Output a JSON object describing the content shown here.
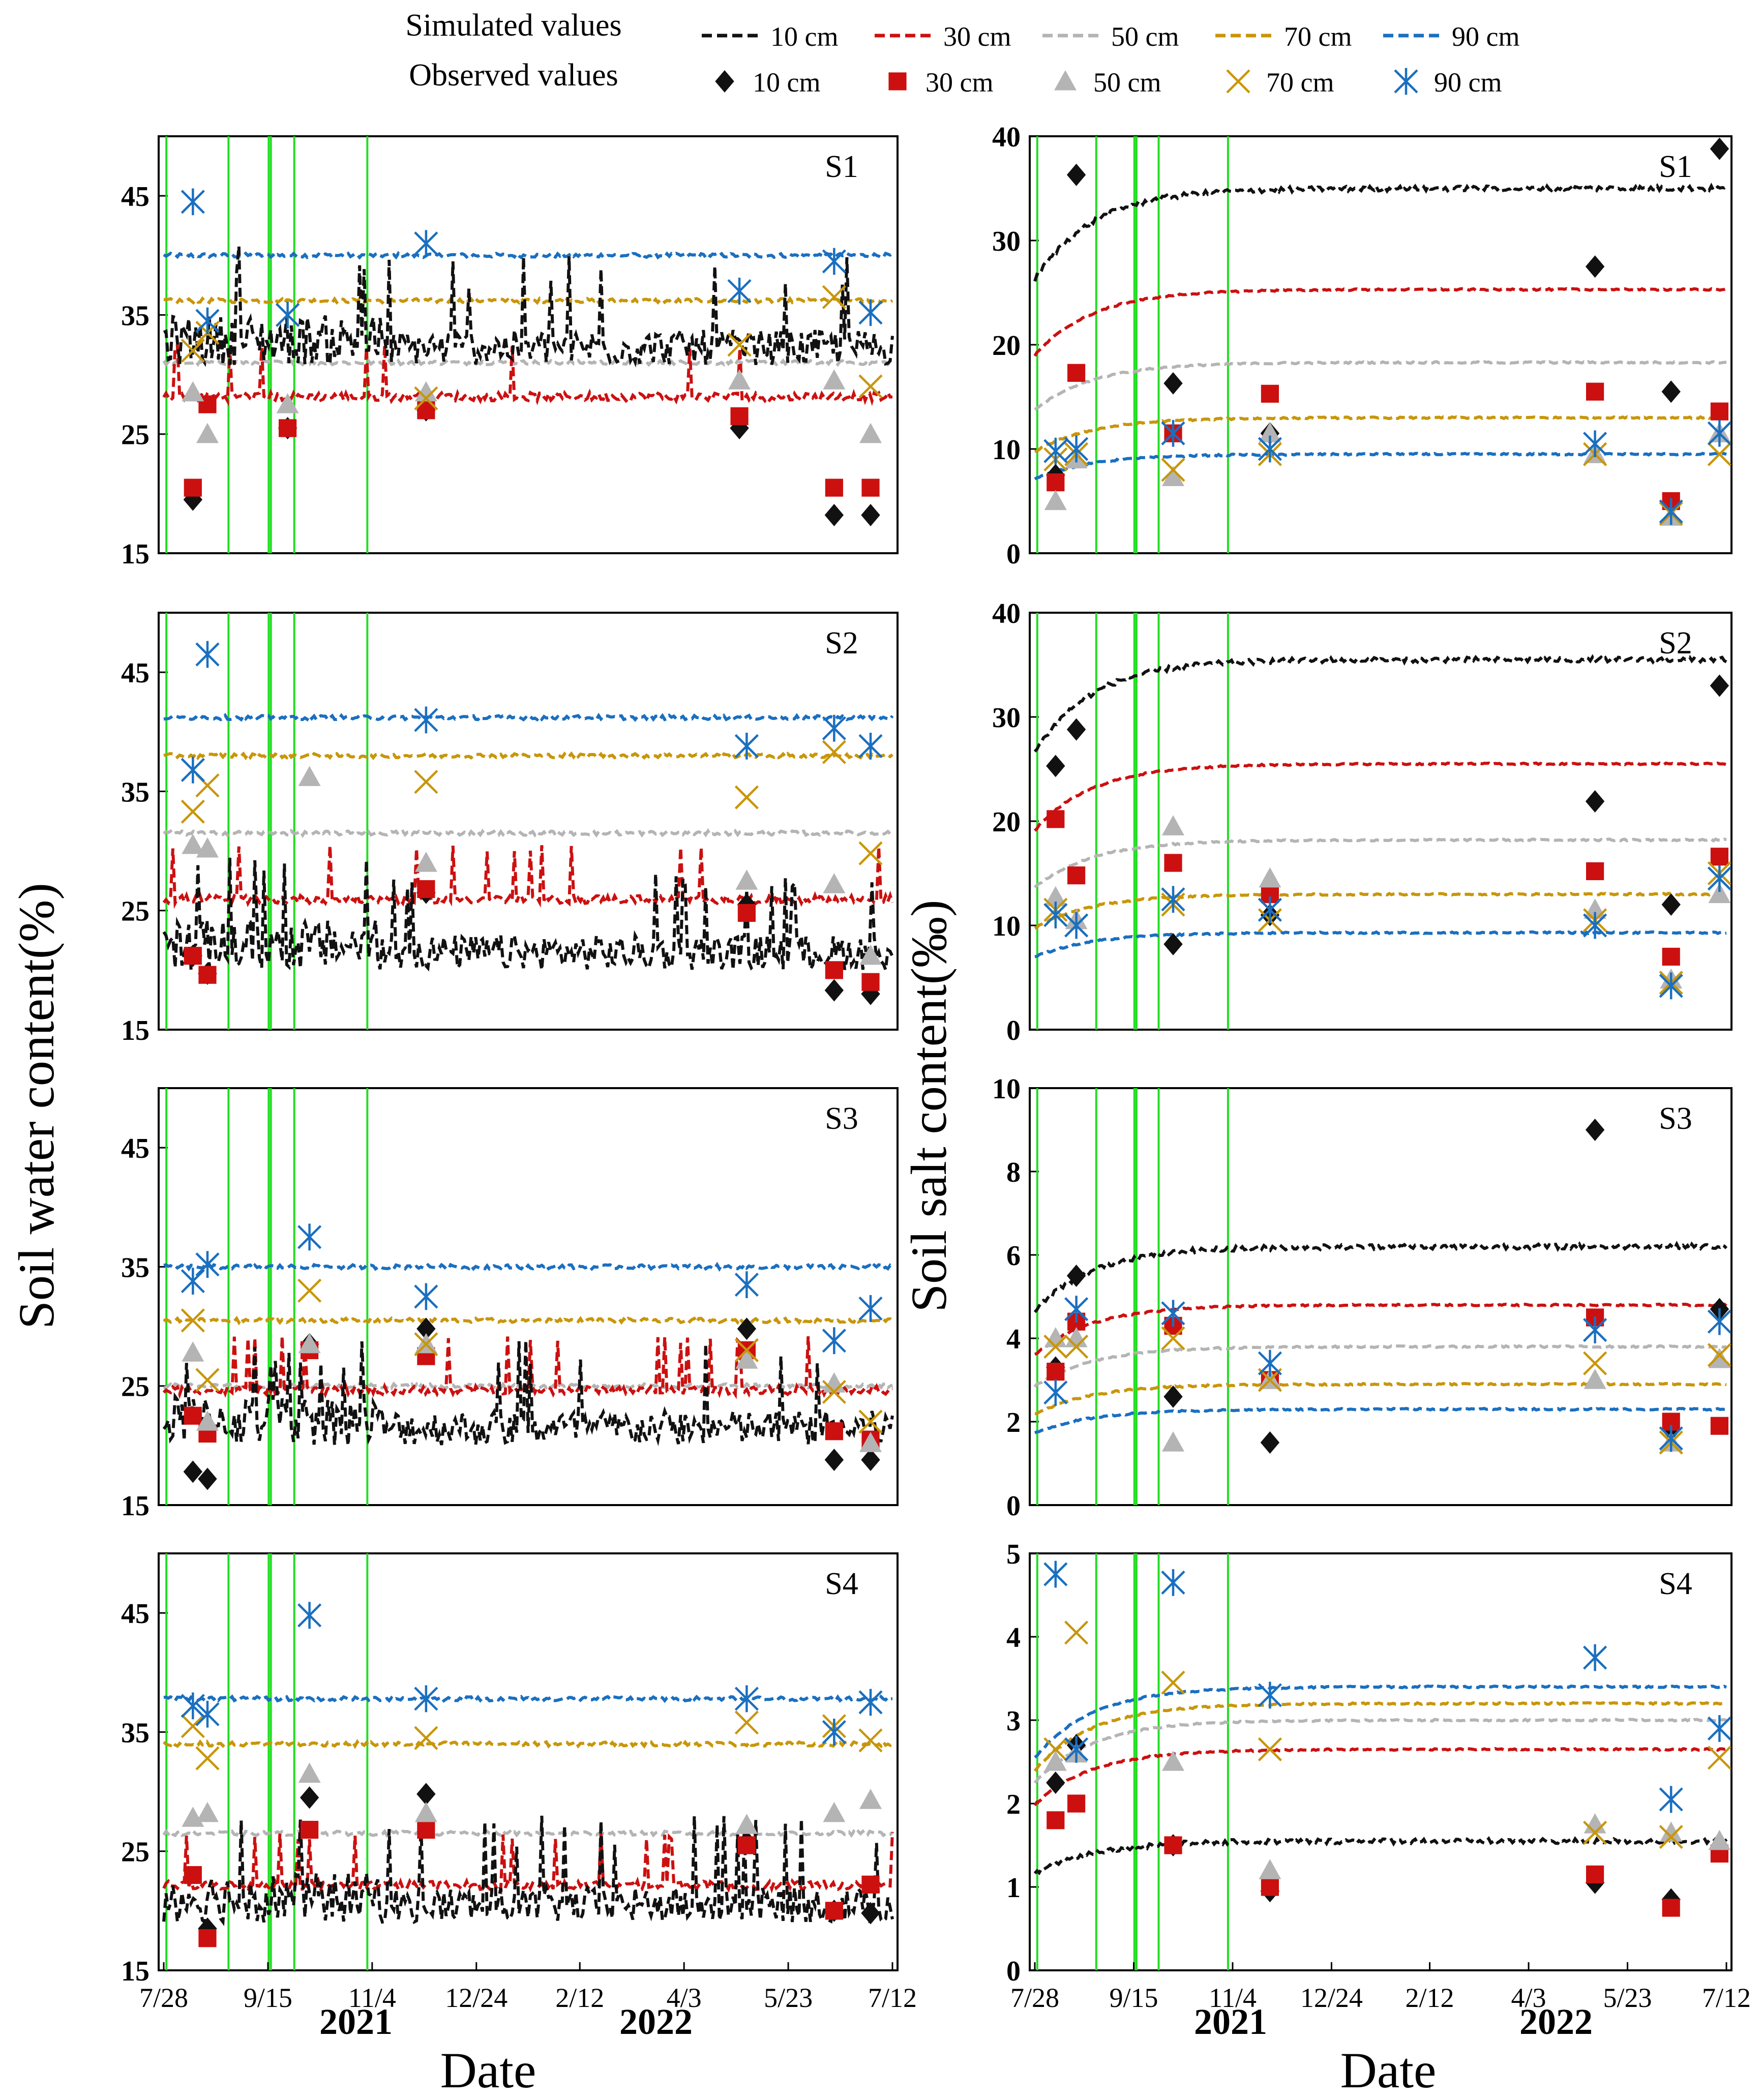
{
  "legend": {
    "simulated_label": "Simulated values",
    "observed_label": "Observed values",
    "depths": [
      "10 cm",
      "30 cm",
      "50 cm",
      "70 cm",
      "90 cm"
    ],
    "colors": [
      "#111111",
      "#cc1010",
      "#b4b4b4",
      "#c8960a",
      "#1a6fc0"
    ]
  },
  "labels": {
    "water_ylabel": "Soil water content(%)",
    "salt_ylabel": "Soil salt content(‰)",
    "xlabel": "Date",
    "year_2021": "2021",
    "year_2022": "2022"
  },
  "chart_data": [
    {
      "type": "line",
      "title": "S1",
      "column": "water",
      "ylim": [
        15,
        50
      ],
      "yticks": [
        15,
        25,
        35,
        45
      ],
      "x_ticks": [
        "7/28",
        "9/15",
        "11/4",
        "12/24",
        "2/12",
        "4/3",
        "5/23",
        "7/12"
      ],
      "simulated": [
        30.8,
        28.0,
        31.0,
        36.2,
        40.0
      ],
      "observed": {
        "x": [
          0.04,
          0.06,
          0.17,
          0.36,
          0.79,
          0.92,
          0.97
        ],
        "series": [
          [
            19.5,
            null,
            25.5,
            27.0,
            25.5,
            18.2,
            18.2
          ],
          [
            20.5,
            27.5,
            25.5,
            27.0,
            26.5,
            20.5,
            20.5
          ],
          [
            28.5,
            25.0,
            27.5,
            28.5,
            29.5,
            29.5,
            25.0
          ],
          [
            32.0,
            33.5,
            35.0,
            28.0,
            32.5,
            36.5,
            29.0
          ],
          [
            44.5,
            34.5,
            35.0,
            41.0,
            37.0,
            39.5,
            35.2
          ]
        ]
      }
    },
    {
      "type": "line",
      "title": "S1",
      "column": "salt",
      "ylim": [
        0,
        40
      ],
      "yticks": [
        0,
        10,
        20,
        30,
        40
      ],
      "x_ticks": [
        "7/28",
        "9/15",
        "11/4",
        "12/24",
        "2/12",
        "4/3",
        "5/23",
        "7/12"
      ],
      "simulated": [
        35.0,
        25.3,
        18.3,
        13.0,
        9.5
      ],
      "observed": {
        "x": [
          0.03,
          0.06,
          0.2,
          0.34,
          0.81,
          0.92,
          0.99
        ],
        "series": [
          [
            7.5,
            36.3,
            16.3,
            11.5,
            27.5,
            15.5,
            38.8
          ],
          [
            6.8,
            17.3,
            11.5,
            15.3,
            15.5,
            5.0,
            13.6
          ],
          [
            5.0,
            9.0,
            7.3,
            11.5,
            9.5,
            3.5,
            11.5
          ],
          [
            9.0,
            9.5,
            8.0,
            9.5,
            9.5,
            3.8,
            9.5
          ],
          [
            9.8,
            10.0,
            11.5,
            10.0,
            10.5,
            4.0,
            11.5
          ]
        ]
      }
    },
    {
      "type": "line",
      "title": "S2",
      "column": "water",
      "ylim": [
        15,
        50
      ],
      "yticks": [
        15,
        25,
        35,
        45
      ],
      "x_ticks": [
        "7/28",
        "9/15",
        "11/4",
        "12/24",
        "2/12",
        "4/3",
        "5/23",
        "7/12"
      ],
      "simulated": [
        20.0,
        25.8,
        31.5,
        38.0,
        41.2
      ],
      "observed": {
        "x": [
          0.04,
          0.06,
          0.2,
          0.36,
          0.8,
          0.92,
          0.97
        ],
        "series": [
          [
            21.2,
            19.7,
            null,
            26.5,
            25.5,
            18.3,
            18.0
          ],
          [
            21.2,
            19.6,
            null,
            26.8,
            24.8,
            20.0,
            19.0
          ],
          [
            30.5,
            30.2,
            36.2,
            29.0,
            27.5,
            27.2,
            21.2
          ],
          [
            33.3,
            35.5,
            null,
            35.8,
            34.5,
            38.3,
            29.8
          ],
          [
            36.8,
            46.5,
            null,
            41.0,
            38.8,
            40.3,
            38.8
          ]
        ]
      }
    },
    {
      "type": "line",
      "title": "S2",
      "column": "salt",
      "ylim": [
        0,
        40
      ],
      "yticks": [
        0,
        10,
        20,
        30,
        40
      ],
      "x_ticks": [
        "7/28",
        "9/15",
        "11/4",
        "12/24",
        "2/12",
        "4/3",
        "5/23",
        "7/12"
      ],
      "simulated": [
        35.5,
        25.5,
        18.2,
        13.0,
        9.3
      ],
      "observed": {
        "x": [
          0.03,
          0.06,
          0.2,
          0.34,
          0.81,
          0.92,
          0.99
        ],
        "series": [
          [
            25.3,
            28.8,
            8.2,
            11.0,
            21.9,
            12.0,
            33.0
          ],
          [
            20.2,
            14.8,
            16.0,
            13.0,
            15.2,
            7.0,
            16.6
          ],
          [
            12.7,
            10.5,
            19.5,
            14.5,
            11.5,
            4.8,
            13.0
          ],
          [
            11.5,
            10.0,
            12.0,
            10.5,
            10.5,
            4.5,
            15.0
          ],
          [
            11.0,
            10.0,
            12.5,
            11.5,
            10.0,
            4.2,
            14.5
          ]
        ]
      }
    },
    {
      "type": "line",
      "title": "S3",
      "column": "water",
      "ylim": [
        15,
        50
      ],
      "yticks": [
        15,
        25,
        35,
        45
      ],
      "x_ticks": [
        "7/28",
        "9/15",
        "11/4",
        "12/24",
        "2/12",
        "4/3",
        "5/23",
        "7/12"
      ],
      "simulated": [
        20.0,
        24.5,
        25.0,
        30.5,
        35.0
      ],
      "observed": {
        "x": [
          0.04,
          0.06,
          0.2,
          0.36,
          0.8,
          0.92,
          0.97
        ],
        "series": [
          [
            17.8,
            17.2,
            28.5,
            29.8,
            29.8,
            18.8,
            18.8
          ],
          [
            22.5,
            21.0,
            28.0,
            27.5,
            28.0,
            21.2,
            20.5
          ],
          [
            27.8,
            22.0,
            28.5,
            28.5,
            27.2,
            25.2,
            20.2
          ],
          [
            30.5,
            25.5,
            33.0,
            28.5,
            28.0,
            24.5,
            22.0
          ],
          [
            33.8,
            35.2,
            37.5,
            32.5,
            33.5,
            28.8,
            31.5
          ]
        ]
      }
    },
    {
      "type": "line",
      "title": "S3",
      "column": "salt",
      "ylim": [
        0,
        10
      ],
      "yticks": [
        0,
        2,
        4,
        6,
        8,
        10
      ],
      "x_ticks": [
        "7/28",
        "9/15",
        "11/4",
        "12/24",
        "2/12",
        "4/3",
        "5/23",
        "7/12"
      ],
      "simulated": [
        6.2,
        4.8,
        3.8,
        2.9,
        2.3
      ],
      "observed": {
        "x": [
          0.03,
          0.06,
          0.2,
          0.34,
          0.81,
          0.92,
          0.99
        ],
        "series": [
          [
            3.3,
            5.5,
            2.6,
            1.5,
            9.0,
            1.8,
            4.7
          ],
          [
            3.2,
            4.4,
            4.3,
            3.0,
            4.5,
            2.0,
            1.9
          ],
          [
            4.0,
            4.0,
            1.5,
            3.0,
            3.0,
            1.5,
            3.5
          ],
          [
            3.8,
            3.8,
            4.0,
            3.0,
            3.4,
            1.5,
            3.6
          ],
          [
            2.7,
            4.7,
            4.6,
            3.4,
            4.2,
            1.6,
            4.4
          ]
        ]
      }
    },
    {
      "type": "line",
      "title": "S4",
      "column": "water",
      "ylim": [
        15,
        50
      ],
      "yticks": [
        15,
        25,
        35,
        45
      ],
      "x_ticks": [
        "7/28",
        "9/15",
        "11/4",
        "12/24",
        "2/12",
        "4/3",
        "5/23",
        "7/12"
      ],
      "simulated": [
        19.0,
        22.0,
        26.5,
        34.0,
        37.8
      ],
      "observed": {
        "x": [
          0.04,
          0.06,
          0.2,
          0.36,
          0.8,
          0.92,
          0.97
        ],
        "series": [
          [
            null,
            18.5,
            29.5,
            29.8,
            25.8,
            20.0,
            19.8
          ],
          [
            23.0,
            17.7,
            26.8,
            26.8,
            25.5,
            20.0,
            22.2
          ],
          [
            27.8,
            28.2,
            31.5,
            28.2,
            27.2,
            28.2,
            29.3
          ],
          [
            35.5,
            32.8,
            null,
            34.5,
            35.8,
            35.5,
            34.3
          ],
          [
            37.2,
            36.5,
            44.8,
            37.8,
            37.8,
            35.0,
            37.5
          ]
        ]
      }
    },
    {
      "type": "line",
      "title": "S4",
      "column": "salt",
      "ylim": [
        0,
        5
      ],
      "yticks": [
        0,
        1,
        2,
        3,
        4,
        5
      ],
      "x_ticks": [
        "7/28",
        "9/15",
        "11/4",
        "12/24",
        "2/12",
        "4/3",
        "5/23",
        "7/12"
      ],
      "simulated": [
        1.55,
        2.65,
        3.0,
        3.2,
        3.4
      ],
      "observed": {
        "x": [
          0.03,
          0.06,
          0.2,
          0.34,
          0.81,
          0.92,
          0.99
        ],
        "series": [
          [
            2.25,
            2.7,
            1.5,
            0.95,
            1.05,
            0.85,
            1.45
          ],
          [
            1.8,
            2.0,
            1.5,
            1.0,
            1.15,
            0.75,
            1.4
          ],
          [
            2.5,
            2.6,
            2.5,
            1.2,
            1.75,
            1.65,
            1.55
          ],
          [
            2.65,
            4.05,
            3.45,
            2.65,
            1.65,
            1.6,
            2.55
          ],
          [
            4.75,
            2.65,
            4.65,
            3.3,
            3.75,
            2.05,
            2.9
          ]
        ]
      }
    }
  ]
}
